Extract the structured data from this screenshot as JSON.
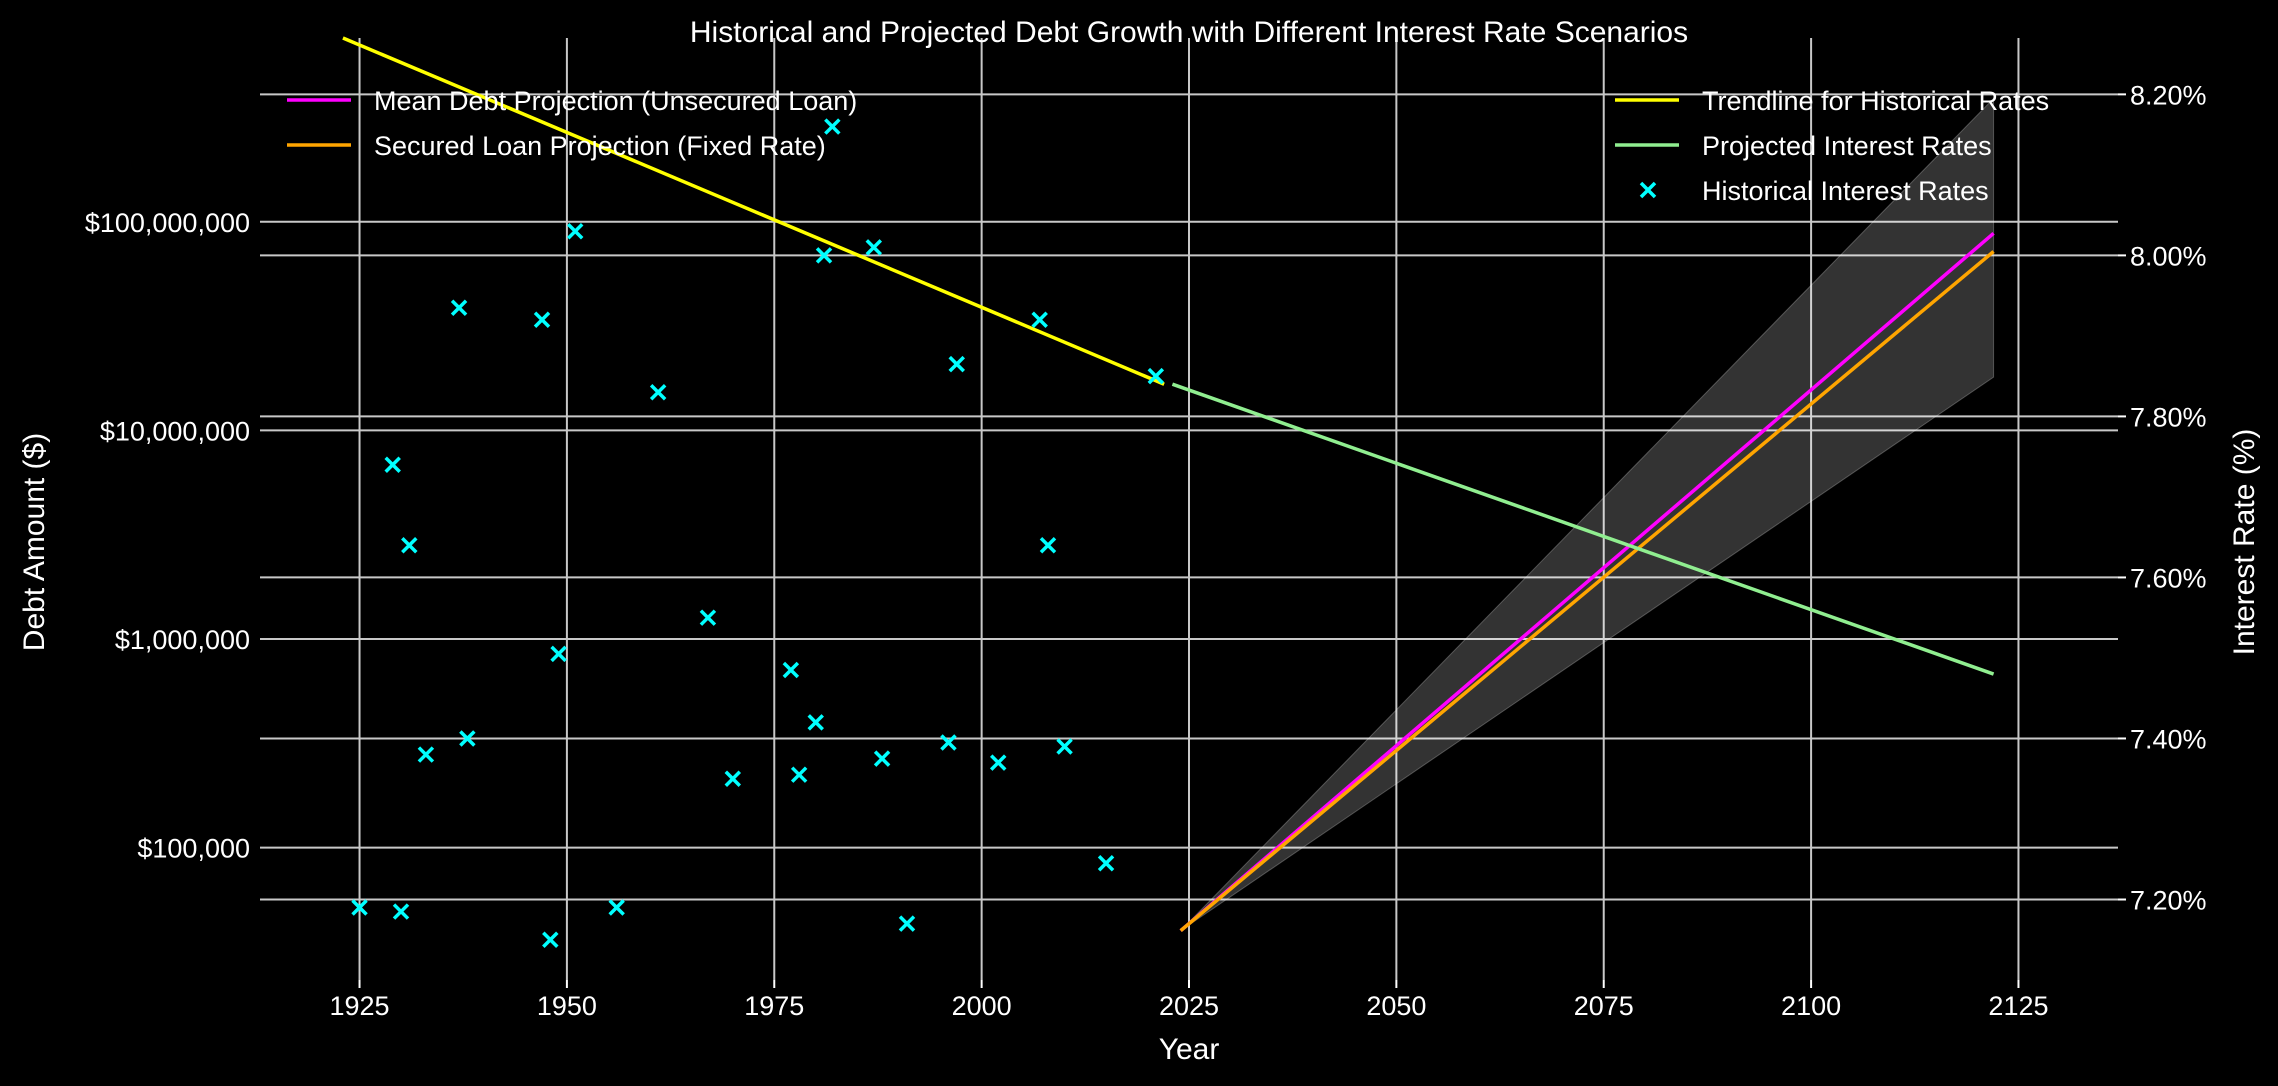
{
  "chart_data": {
    "type": "line",
    "title": "Historical and Projected Debt Growth with Different Interest Rate Scenarios",
    "xlabel": "Year",
    "ylabel_left": "Debt Amount ($)",
    "ylabel_right": "Interest Rate (%)",
    "xlim": [
      1913,
      2137
    ],
    "x_ticks": [
      1925,
      1950,
      1975,
      2000,
      2025,
      2050,
      2075,
      2100,
      2125
    ],
    "x_tick_labels": [
      "1925",
      "1950",
      "1975",
      "2000",
      "2025",
      "2050",
      "2075",
      "2100",
      "2125"
    ],
    "left_axis": {
      "scale": "log",
      "ylim": [
        23200,
        760000000
      ],
      "ticks": [
        100000,
        1000000,
        10000000,
        100000000
      ],
      "tick_labels": [
        "$100,000",
        "$1,000,000",
        "$10,000,000",
        "$100,000,000"
      ]
    },
    "right_axis": {
      "scale": "linear",
      "ylim": [
        7.1,
        8.27
      ],
      "ticks": [
        7.2,
        7.4,
        7.6,
        7.8,
        8.0,
        8.2
      ],
      "tick_labels": [
        "7.20%",
        "7.40%",
        "7.60%",
        "7.80%",
        "8.00%",
        "8.20%"
      ]
    },
    "grid": true,
    "legend_left": {
      "placement": "top-left",
      "entries": [
        "Mean Debt Projection (Unsecured Loan)",
        "Secured Loan Projection (Fixed Rate)"
      ]
    },
    "legend_right": {
      "placement": "top-right",
      "entries": [
        "Trendline for Historical Rates",
        "Projected Interest Rates",
        "Historical Interest Rates"
      ]
    },
    "series": [
      {
        "name": "Mean Debt Projection (Unsecured Loan)",
        "axis": "left",
        "kind": "line",
        "color": "#ff00ff",
        "x": [
          2024,
          2122
        ],
        "y": [
          40000,
          88000000
        ]
      },
      {
        "name": "Secured Loan Projection (Fixed Rate)",
        "axis": "left",
        "kind": "line",
        "color": "#ffa500",
        "x": [
          2024,
          2122
        ],
        "y": [
          40000,
          72000000
        ]
      },
      {
        "name": "",
        "axis": "left",
        "kind": "band",
        "color": "#ffffff",
        "x": [
          2024,
          2122
        ],
        "upper": [
          40000,
          390000000
        ],
        "lower": [
          40000,
          18000000
        ]
      },
      {
        "name": "Trendline for Historical Rates",
        "axis": "right",
        "kind": "line",
        "color": "#ffff00",
        "x": [
          1923,
          2022
        ],
        "y": [
          8.27,
          7.84
        ]
      },
      {
        "name": "Projected Interest Rates",
        "axis": "right",
        "kind": "line",
        "color": "#90ee90",
        "x": [
          2023,
          2122
        ],
        "y": [
          7.84,
          7.48
        ]
      },
      {
        "name": "Historical Interest Rates",
        "axis": "right",
        "kind": "scatter",
        "marker": "x",
        "color": "#00ffff",
        "x": [
          1925,
          1929,
          1930,
          1931,
          1933,
          1937,
          1938,
          1947,
          1948,
          1949,
          1951,
          1956,
          1961,
          1967,
          1970,
          1977,
          1978,
          1980,
          1981,
          1982,
          1987,
          1988,
          1991,
          1996,
          1997,
          2002,
          2007,
          2008,
          2010,
          2015,
          2021
        ],
        "y": [
          7.19,
          7.74,
          7.185,
          7.64,
          7.38,
          7.935,
          7.4,
          7.92,
          7.15,
          7.505,
          8.03,
          7.19,
          7.83,
          7.55,
          7.35,
          7.485,
          7.355,
          7.42,
          8.0,
          8.16,
          8.01,
          7.375,
          7.17,
          7.395,
          7.865,
          7.37,
          7.92,
          7.64,
          7.39,
          7.245,
          7.85
        ]
      }
    ]
  }
}
